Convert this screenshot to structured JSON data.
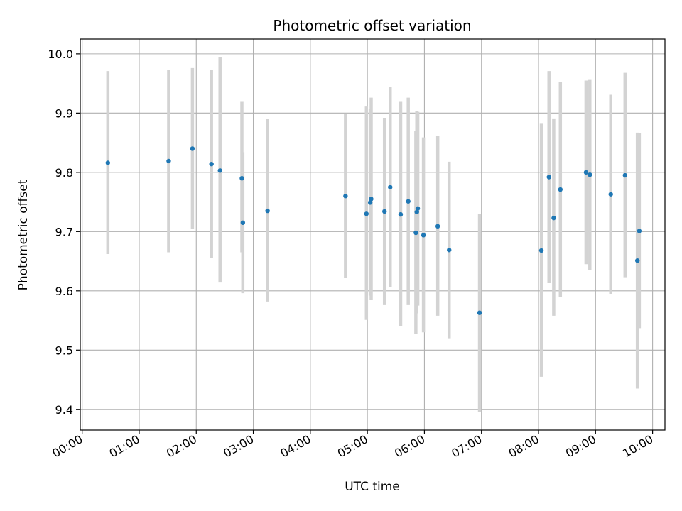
{
  "chart_data": {
    "type": "scatter",
    "title": "Photometric offset variation",
    "xlabel": "UTC time",
    "ylabel": "Photometric offset",
    "x_unit": "UTC time (HH:MM)",
    "xlim": [
      "-00:02",
      "10:13"
    ],
    "ylim": [
      9.365,
      10.025
    ],
    "x_ticks": [
      "00:00",
      "01:00",
      "02:00",
      "03:00",
      "04:00",
      "05:00",
      "06:00",
      "07:00",
      "08:00",
      "09:00",
      "10:00"
    ],
    "y_ticks": [
      "9.4",
      "9.5",
      "9.6",
      "9.7",
      "9.8",
      "9.9",
      "10.0"
    ],
    "y_tick_values": [
      9.4,
      9.5,
      9.6,
      9.7,
      9.8,
      9.9,
      10.0
    ],
    "grid": true,
    "legend": "none",
    "colors": {
      "marker": "#1f77b4",
      "errorbar": "#d3d3d3",
      "grid": "#b0b0b0"
    },
    "points": [
      {
        "x": "00:27",
        "y": 9.816,
        "ylow": 9.662,
        "yhigh": 9.971
      },
      {
        "x": "01:31",
        "y": 9.819,
        "ylow": 9.665,
        "yhigh": 9.973
      },
      {
        "x": "01:56",
        "y": 9.84,
        "ylow": 9.705,
        "yhigh": 9.976
      },
      {
        "x": "02:16",
        "y": 9.814,
        "ylow": 9.656,
        "yhigh": 9.973
      },
      {
        "x": "02:25",
        "y": 9.803,
        "ylow": 9.614,
        "yhigh": 9.994
      },
      {
        "x": "02:48",
        "y": 9.79,
        "ylow": 9.665,
        "yhigh": 9.919
      },
      {
        "x": "02:49",
        "y": 9.715,
        "ylow": 9.596,
        "yhigh": 9.834
      },
      {
        "x": "03:15",
        "y": 9.735,
        "ylow": 9.582,
        "yhigh": 9.89
      },
      {
        "x": "04:37",
        "y": 9.76,
        "ylow": 9.622,
        "yhigh": 9.899
      },
      {
        "x": "04:59",
        "y": 9.73,
        "ylow": 9.551,
        "yhigh": 9.911
      },
      {
        "x": "05:03",
        "y": 9.749,
        "ylow": 9.592,
        "yhigh": 9.907
      },
      {
        "x": "05:04",
        "y": 9.755,
        "ylow": 9.585,
        "yhigh": 9.926
      },
      {
        "x": "05:18",
        "y": 9.734,
        "ylow": 9.576,
        "yhigh": 9.892
      },
      {
        "x": "05:24",
        "y": 9.775,
        "ylow": 9.606,
        "yhigh": 9.944
      },
      {
        "x": "05:35",
        "y": 9.729,
        "ylow": 9.54,
        "yhigh": 9.919
      },
      {
        "x": "05:43",
        "y": 9.751,
        "ylow": 9.576,
        "yhigh": 9.926
      },
      {
        "x": "05:51",
        "y": 9.698,
        "ylow": 9.527,
        "yhigh": 9.87
      },
      {
        "x": "05:52",
        "y": 9.733,
        "ylow": 9.562,
        "yhigh": 9.903
      },
      {
        "x": "05:53",
        "y": 9.739,
        "ylow": 9.575,
        "yhigh": 9.902
      },
      {
        "x": "05:59",
        "y": 9.694,
        "ylow": 9.53,
        "yhigh": 9.859
      },
      {
        "x": "06:14",
        "y": 9.709,
        "ylow": 9.558,
        "yhigh": 9.861
      },
      {
        "x": "06:26",
        "y": 9.669,
        "ylow": 9.52,
        "yhigh": 9.818
      },
      {
        "x": "06:58",
        "y": 9.563,
        "ylow": 9.396,
        "yhigh": 9.73
      },
      {
        "x": "08:03",
        "y": 9.668,
        "ylow": 9.455,
        "yhigh": 9.882
      },
      {
        "x": "08:11",
        "y": 9.792,
        "ylow": 9.613,
        "yhigh": 9.971
      },
      {
        "x": "08:16",
        "y": 9.723,
        "ylow": 9.558,
        "yhigh": 9.891
      },
      {
        "x": "08:23",
        "y": 9.771,
        "ylow": 9.59,
        "yhigh": 9.952
      },
      {
        "x": "08:50",
        "y": 9.8,
        "ylow": 9.645,
        "yhigh": 9.955
      },
      {
        "x": "08:54",
        "y": 9.796,
        "ylow": 9.635,
        "yhigh": 9.956
      },
      {
        "x": "09:16",
        "y": 9.763,
        "ylow": 9.595,
        "yhigh": 9.931
      },
      {
        "x": "09:31",
        "y": 9.795,
        "ylow": 9.623,
        "yhigh": 9.968
      },
      {
        "x": "09:44",
        "y": 9.651,
        "ylow": 9.435,
        "yhigh": 9.867
      },
      {
        "x": "09:46",
        "y": 9.701,
        "ylow": 9.537,
        "yhigh": 9.866
      }
    ]
  }
}
